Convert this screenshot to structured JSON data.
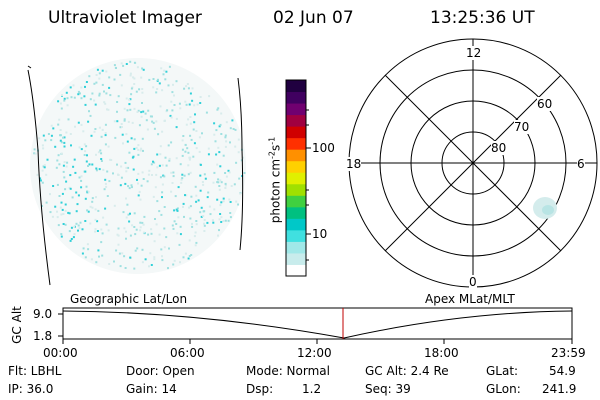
{
  "header": {
    "instrument": "Ultraviolet Imager",
    "date": "02 Jun 07",
    "time": "13:25:36 UT"
  },
  "colorbar": {
    "label": "photon cm",
    "label_exp1": "-2",
    "label_mid": "s",
    "label_exp2": "-1",
    "ticks": [
      "100",
      "10"
    ],
    "colors": [
      "#ffffff",
      "#c8ecec",
      "#a0e8e8",
      "#40e0e0",
      "#00c8c8",
      "#00c080",
      "#40d040",
      "#a0e000",
      "#e0f000",
      "#ffd000",
      "#ff9000",
      "#ff3000",
      "#d00000",
      "#a00040",
      "#700070",
      "#400060",
      "#200040"
    ]
  },
  "polar": {
    "clock_labels": {
      "top": "12",
      "left": "18",
      "right": "6",
      "bottom": "0"
    },
    "lat_labels": [
      "60",
      "70",
      "80"
    ]
  },
  "timeline": {
    "left_title": "Geographic Lat/Lon",
    "right_title": "Apex MLat/MLT",
    "ylabel": "GC Alt",
    "y_ticks": [
      "9.0",
      "1.8"
    ],
    "x_ticks": [
      "00:00",
      "06:00",
      "12:00",
      "18:00",
      "23:59"
    ],
    "current_time": "13:25:36"
  },
  "status": {
    "flt": "Flt: LBHL",
    "ip": "IP: 36.0",
    "door": "Door: Open",
    "gain": "Gain: 14",
    "mode": "Mode: Normal",
    "dsp": "Dsp:",
    "dsp_value": "1.2",
    "gcalt": "GC Alt: 2.4 Re",
    "seq": "Seq: 39",
    "glat": "GLat:",
    "glat_value": "54.9",
    "glon": "GLon:",
    "glon_value": "241.9"
  },
  "accent_colors": {
    "image_dots": "#9fe0e0",
    "image_dots_bright": "#30d0d8",
    "cursor_line": "#c00000"
  }
}
